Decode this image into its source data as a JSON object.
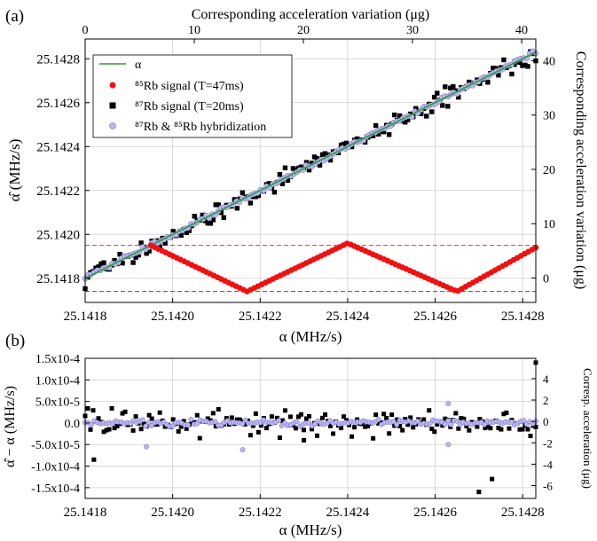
{
  "panel_labels": {
    "a": "(a)",
    "b": "(b)"
  },
  "chart_data": [
    {
      "type": "scatter",
      "panel": "(a)",
      "xlabel": "α (MHz/s)",
      "ylabel": "α̂ (MHz/s)",
      "top_xlabel": "Corresponding acceleration variation (μg)",
      "right_ylabel": "Corresponding acceleration variation (μg)",
      "xlim": [
        25.1418,
        25.14283
      ],
      "ylim": [
        25.14169,
        25.14289
      ],
      "x_ticks": [
        "25.1418",
        "25.1420",
        "25.1422",
        "25.1424",
        "25.1426",
        "25.1428"
      ],
      "x_tick_values": [
        25.1418,
        25.142,
        25.1422,
        25.1424,
        25.1426,
        25.1428
      ],
      "y_ticks": [
        "25.1418",
        "25.1420",
        "25.1422",
        "25.1424",
        "25.1426",
        "25.1428"
      ],
      "y_tick_values": [
        25.1418,
        25.142,
        25.1422,
        25.1424,
        25.1426,
        25.1428
      ],
      "top_ticks": [
        "0",
        "10",
        "20",
        "30",
        "40"
      ],
      "top_tick_values": [
        0,
        10,
        20,
        30,
        40
      ],
      "top_lim": [
        0,
        41.3
      ],
      "right_ticks": [
        "0",
        "10",
        "20",
        "30",
        "40"
      ],
      "right_tick_values": [
        0,
        10,
        20,
        30,
        40
      ],
      "right_lim": [
        -4.5,
        44.0
      ],
      "grid": true,
      "legend_position": "top-left",
      "legend": [
        {
          "label": "α",
          "marker": "line",
          "color": "#2a9d2a"
        },
        {
          "label": "⁸⁵Rb signal (T=47ms)",
          "marker": "circle",
          "color": "#ee1111"
        },
        {
          "label": "⁸⁷Rb signal (T=20ms)",
          "marker": "square",
          "color": "#000000"
        },
        {
          "label": "⁸⁷Rb & ⁸⁵Rb hybridization",
          "marker": "circle",
          "color": "#a9a6e6"
        }
      ],
      "reference_lines": {
        "y": [
          25.14195,
          25.14174
        ],
        "color": "#ee1111",
        "style": "dashed"
      },
      "series": [
        {
          "name": "α",
          "kind": "line",
          "x": [
            25.1418,
            25.14283
          ],
          "y": [
            25.1418,
            25.14283
          ]
        },
        {
          "name": "⁸⁵Rb signal (T=47ms)",
          "kind": "triangle-wave",
          "x_range": [
            25.14195,
            25.14283
          ],
          "count": 105,
          "vertices": [
            [
              25.14195,
              25.14195
            ],
            [
              25.14217,
              25.14174
            ],
            [
              25.1424,
              25.14196
            ],
            [
              25.14265,
              25.14174
            ],
            [
              25.14283,
              25.14194
            ]
          ]
        },
        {
          "name": "⁸⁷Rb signal (T=20ms)",
          "kind": "scatter-about-alpha",
          "x_range": [
            25.1418,
            25.14283
          ],
          "count": 170,
          "typical_spread": 6e-05
        },
        {
          "name": "⁸⁷Rb & ⁸⁵Rb hybridization",
          "kind": "scatter-about-alpha",
          "x_range": [
            25.1418,
            25.14283
          ],
          "count": 150,
          "typical_spread": 1.5e-05
        }
      ]
    },
    {
      "type": "scatter",
      "panel": "(b)",
      "xlabel": "α (MHz/s)",
      "ylabel": "α̂ − α (MHz/s)",
      "right_ylabel": "Corresp. acceleration (μg)",
      "xlim": [
        25.1418,
        25.14283
      ],
      "ylim": [
        -0.000175,
        0.00015
      ],
      "x_ticks": [
        "25.1418",
        "25.1420",
        "25.1422",
        "25.1424",
        "25.1426",
        "25.1428"
      ],
      "x_tick_values": [
        25.1418,
        25.142,
        25.1422,
        25.1424,
        25.1426,
        25.1428
      ],
      "y_ticks": [
        "1.5x10-4",
        "1.0x10-4",
        "5.0x10-5",
        "0.0",
        "-5.0x10-5",
        "-1.0x10-4",
        "-1.5x10-4"
      ],
      "y_tick_values": [
        0.00015,
        0.0001,
        5e-05,
        0,
        -5e-05,
        -0.0001,
        -0.00015
      ],
      "right_ticks": [
        "4",
        "2",
        "0",
        "-2",
        "-4",
        "-6"
      ],
      "right_tick_values": [
        4,
        2,
        0,
        -2,
        -4,
        -6
      ],
      "right_lim": [
        -7.2,
        5.9
      ],
      "grid": true,
      "series": [
        {
          "name": "⁸⁷Rb signal (T=20ms)",
          "kind": "scatter-residual",
          "count": 170,
          "typical_spread": 4e-05,
          "outliers": [
            [
              25.1427,
              -0.00016
            ],
            [
              25.14273,
              -0.00013
            ],
            [
              25.14283,
              0.00014
            ],
            [
              25.14182,
              -8.5e-05
            ],
            [
              25.1423,
              -4e-05
            ]
          ]
        },
        {
          "name": "⁸⁷Rb & ⁸⁵Rb hybridization",
          "kind": "scatter-residual",
          "count": 150,
          "typical_spread": 1e-05,
          "outliers": [
            [
              25.14194,
              -5.5e-05
            ],
            [
              25.14216,
              -6.2e-05
            ],
            [
              25.14263,
              -5e-05
            ],
            [
              25.14263,
              4.5e-05
            ]
          ]
        }
      ]
    }
  ]
}
